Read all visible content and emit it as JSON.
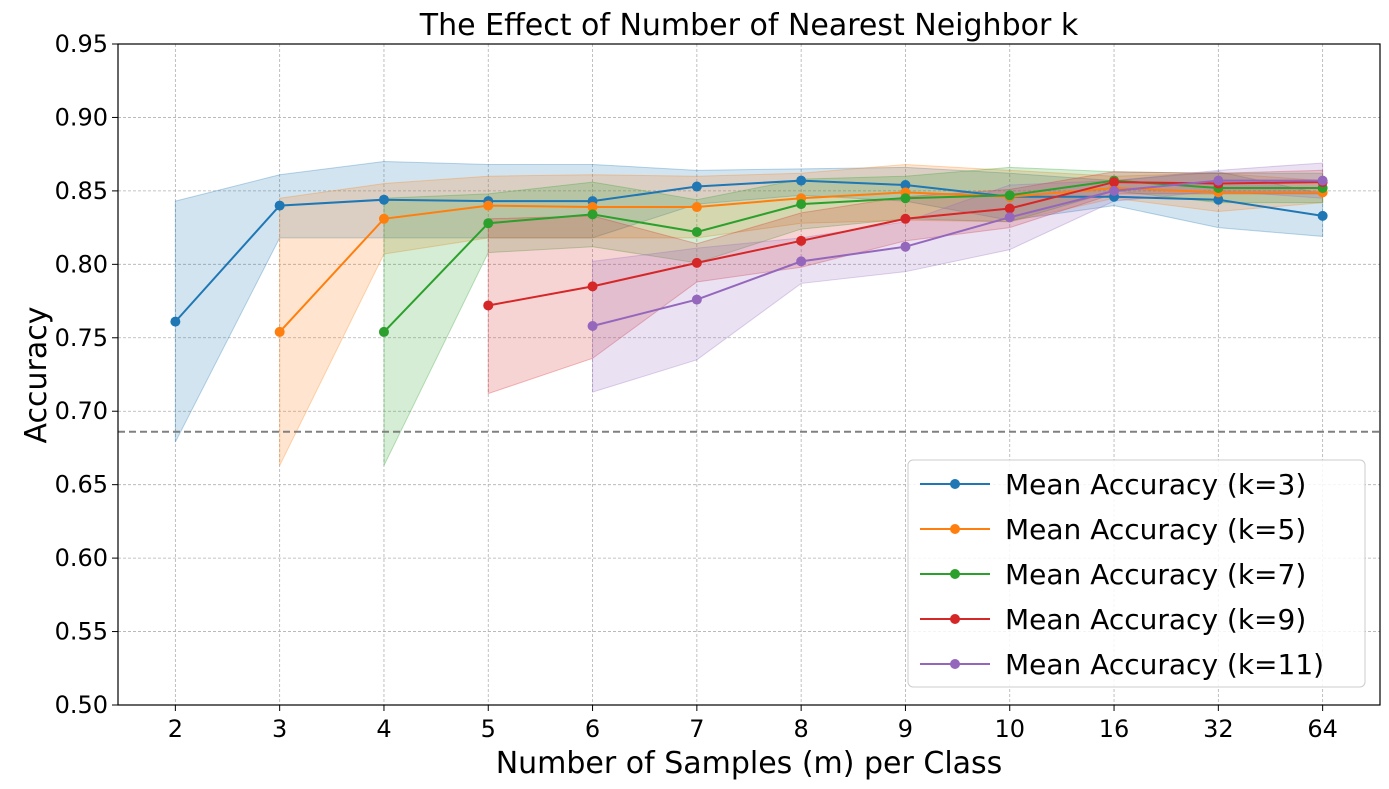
{
  "chart_data": {
    "type": "line",
    "title": "The Effect of Number of Nearest Neighbor k",
    "xlabel": "Number of Samples (m) per Class",
    "ylabel": "Accuracy",
    "categories": [
      "2",
      "3",
      "4",
      "5",
      "6",
      "7",
      "8",
      "9",
      "10",
      "16",
      "32",
      "64"
    ],
    "ylim": [
      0.5,
      0.95
    ],
    "yticks": [
      "0.50",
      "0.55",
      "0.60",
      "0.65",
      "0.70",
      "0.75",
      "0.80",
      "0.85",
      "0.90",
      "0.95"
    ],
    "grid": true,
    "baseline": 0.686,
    "legend_position": "lower-right",
    "series": [
      {
        "name": "Mean Accuracy (k=3)",
        "color": "#1f77b4",
        "values": [
          0.761,
          0.84,
          0.844,
          0.843,
          0.843,
          0.853,
          0.857,
          0.854,
          0.846,
          0.846,
          0.844,
          0.833
        ],
        "lower": [
          0.679,
          0.818,
          0.818,
          0.818,
          0.818,
          0.841,
          0.847,
          0.843,
          0.83,
          0.84,
          0.825,
          0.819
        ],
        "upper": [
          0.843,
          0.861,
          0.87,
          0.868,
          0.868,
          0.864,
          0.865,
          0.866,
          0.862,
          0.857,
          0.863,
          0.848
        ]
      },
      {
        "name": "Mean Accuracy (k=5)",
        "color": "#ff7f0e",
        "values": [
          null,
          0.754,
          0.831,
          0.84,
          0.839,
          0.839,
          0.845,
          0.849,
          0.846,
          0.852,
          0.849,
          0.849
        ],
        "lower": [
          null,
          0.663,
          0.807,
          0.818,
          0.818,
          0.818,
          0.828,
          0.83,
          0.829,
          0.845,
          0.836,
          0.842
        ],
        "upper": [
          null,
          0.845,
          0.855,
          0.86,
          0.861,
          0.86,
          0.862,
          0.868,
          0.864,
          0.86,
          0.862,
          0.857
        ]
      },
      {
        "name": "Mean Accuracy (k=7)",
        "color": "#2ca02c",
        "values": [
          null,
          null,
          0.754,
          0.828,
          0.834,
          0.822,
          0.841,
          0.845,
          0.847,
          0.857,
          0.852,
          0.852
        ],
        "lower": [
          null,
          null,
          0.663,
          0.808,
          0.812,
          0.801,
          0.824,
          0.831,
          0.829,
          0.85,
          0.842,
          0.842
        ],
        "upper": [
          null,
          null,
          0.845,
          0.848,
          0.856,
          0.844,
          0.858,
          0.86,
          0.866,
          0.863,
          0.862,
          0.862
        ]
      },
      {
        "name": "Mean Accuracy (k=9)",
        "color": "#d62728",
        "values": [
          null,
          null,
          null,
          0.772,
          0.785,
          0.801,
          0.816,
          0.831,
          0.838,
          0.856,
          0.855,
          0.856
        ],
        "lower": [
          null,
          null,
          null,
          0.712,
          0.736,
          0.788,
          0.798,
          0.816,
          0.825,
          0.848,
          0.848,
          0.848
        ],
        "upper": [
          null,
          null,
          null,
          0.831,
          0.833,
          0.814,
          0.835,
          0.846,
          0.851,
          0.863,
          0.862,
          0.864
        ]
      },
      {
        "name": "Mean Accuracy (k=11)",
        "color": "#9467bd",
        "values": [
          null,
          null,
          null,
          null,
          0.758,
          0.776,
          0.802,
          0.812,
          0.832,
          0.85,
          0.857,
          0.857
        ],
        "lower": [
          null,
          null,
          null,
          null,
          0.713,
          0.735,
          0.787,
          0.795,
          0.81,
          0.843,
          0.85,
          0.845
        ],
        "upper": [
          null,
          null,
          null,
          null,
          0.802,
          0.811,
          0.818,
          0.829,
          0.854,
          0.857,
          0.864,
          0.869
        ]
      }
    ]
  }
}
